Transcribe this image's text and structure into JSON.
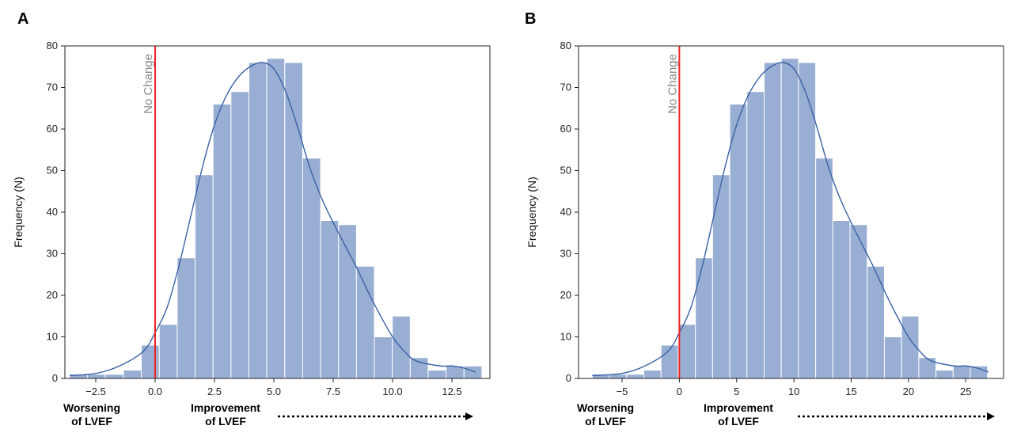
{
  "chart_data": [
    {
      "type": "bar",
      "panel_label": "A",
      "xlabel": "",
      "ylabel": "Frequency (N)",
      "xlim": [
        -3.8,
        14.1
      ],
      "ylim": [
        0,
        80
      ],
      "xticks": [
        -2.5,
        0.0,
        2.5,
        5.0,
        7.5,
        10.0,
        12.5
      ],
      "xtick_labels": [
        "−2.5",
        "0.0",
        "2.5",
        "5.0",
        "7.5",
        "10.0",
        "12.5"
      ],
      "yticks": [
        0,
        10,
        20,
        30,
        40,
        50,
        60,
        70,
        80
      ],
      "ytick_labels": [
        "0",
        "10",
        "20",
        "30",
        "40",
        "50",
        "60",
        "70",
        "80"
      ],
      "bin_start": -3.6,
      "bin_width": 0.755,
      "values": [
        1,
        1,
        1,
        2,
        8,
        13,
        29,
        49,
        66,
        69,
        76,
        77,
        76,
        53,
        38,
        37,
        27,
        10,
        15,
        5,
        2,
        3,
        3
      ],
      "kde": [
        [
          -3.6,
          0.7
        ],
        [
          -2.5,
          1.2
        ],
        [
          -1.5,
          3
        ],
        [
          -0.5,
          6.5
        ],
        [
          0.0,
          11
        ],
        [
          0.5,
          17
        ],
        [
          1.0,
          27
        ],
        [
          1.5,
          39
        ],
        [
          2.0,
          51
        ],
        [
          2.5,
          61
        ],
        [
          3.0,
          68
        ],
        [
          3.5,
          72.5
        ],
        [
          4.0,
          75
        ],
        [
          4.5,
          76
        ],
        [
          5.0,
          74.5
        ],
        [
          5.5,
          69
        ],
        [
          6.0,
          60.5
        ],
        [
          6.5,
          51
        ],
        [
          7.0,
          43.5
        ],
        [
          7.5,
          37.5
        ],
        [
          8.0,
          32
        ],
        [
          8.5,
          26.5
        ],
        [
          9.0,
          20.5
        ],
        [
          9.5,
          15
        ],
        [
          10.0,
          10
        ],
        [
          10.5,
          6.5
        ],
        [
          11.0,
          4.2
        ],
        [
          12.0,
          3
        ],
        [
          12.5,
          3
        ],
        [
          13.0,
          2.5
        ],
        [
          13.5,
          1.5
        ]
      ],
      "reference_line": {
        "x": 0.0,
        "label": "No Change",
        "color": "#ee2222"
      },
      "bar_color": "#98aed3",
      "kde_color": "#3b62a6",
      "bottom_labels": {
        "left": [
          "Worsening",
          "of LVEF"
        ],
        "right": [
          "Improvement",
          "of LVEF"
        ]
      },
      "grid": false,
      "legend": false
    },
    {
      "type": "bar",
      "panel_label": "B",
      "xlabel": "",
      "ylabel": "Frequency (N)",
      "xlim": [
        -8.8,
        28.3
      ],
      "ylim": [
        0,
        80
      ],
      "xticks": [
        -5,
        0,
        5,
        10,
        15,
        20,
        25
      ],
      "xtick_labels": [
        "−5",
        "0",
        "5",
        "10",
        "15",
        "20",
        "25"
      ],
      "yticks": [
        0,
        10,
        20,
        30,
        40,
        50,
        60,
        70,
        80
      ],
      "ytick_labels": [
        "0",
        "10",
        "20",
        "30",
        "40",
        "50",
        "60",
        "70",
        "80"
      ],
      "bin_start": -7.6,
      "bin_width": 1.5,
      "values": [
        1,
        1,
        1,
        2,
        8,
        13,
        29,
        49,
        66,
        69,
        76,
        77,
        76,
        53,
        38,
        37,
        27,
        10,
        15,
        5,
        2,
        3,
        3
      ],
      "kde": [
        [
          -7.6,
          0.7
        ],
        [
          -5,
          1.2
        ],
        [
          -3,
          3
        ],
        [
          -1,
          6.5
        ],
        [
          0,
          11
        ],
        [
          1,
          17
        ],
        [
          2,
          27
        ],
        [
          3,
          39
        ],
        [
          4,
          51
        ],
        [
          5,
          61
        ],
        [
          6,
          68
        ],
        [
          7,
          72.5
        ],
        [
          8,
          75
        ],
        [
          9,
          76
        ],
        [
          10,
          74.5
        ],
        [
          11,
          69
        ],
        [
          12,
          60.5
        ],
        [
          13,
          51
        ],
        [
          14,
          43.5
        ],
        [
          15,
          37.5
        ],
        [
          16,
          32
        ],
        [
          17,
          26.5
        ],
        [
          18,
          20.5
        ],
        [
          19,
          15
        ],
        [
          20,
          10
        ],
        [
          21,
          6.5
        ],
        [
          22,
          4.2
        ],
        [
          24,
          3
        ],
        [
          25,
          3
        ],
        [
          26,
          2.5
        ],
        [
          27,
          1.5
        ]
      ],
      "reference_line": {
        "x": 0,
        "label": "No Change",
        "color": "#ee2222"
      },
      "bar_color": "#98aed3",
      "kde_color": "#3b62a6",
      "bottom_labels": {
        "left": [
          "Worsening",
          "of LVEF"
        ],
        "right": [
          "Improvement",
          "of LVEF"
        ]
      },
      "grid": false,
      "legend": false
    }
  ]
}
